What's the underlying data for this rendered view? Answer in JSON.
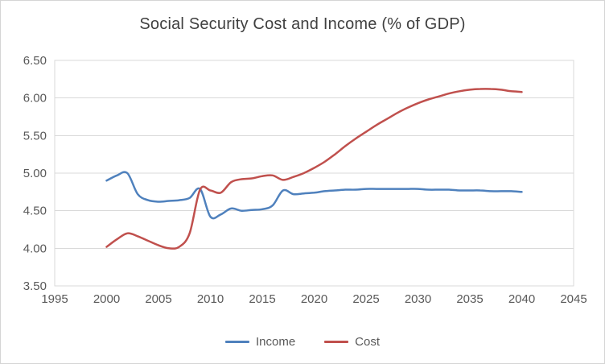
{
  "chart_data": {
    "type": "line",
    "title": "Social Security Cost and Income (% of GDP)",
    "xlabel": "",
    "ylabel": "",
    "xlim": [
      1995,
      2045
    ],
    "ylim": [
      3.5,
      6.5
    ],
    "x_ticks": [
      1995,
      2000,
      2005,
      2010,
      2015,
      2020,
      2025,
      2030,
      2035,
      2040,
      2045
    ],
    "y_ticks": [
      3.5,
      4.0,
      4.5,
      5.0,
      5.5,
      6.0,
      6.5
    ],
    "grid": "horizontal",
    "legend_position": "bottom",
    "x": [
      2000,
      2001,
      2002,
      2003,
      2004,
      2005,
      2006,
      2007,
      2008,
      2009,
      2010,
      2011,
      2012,
      2013,
      2014,
      2015,
      2016,
      2017,
      2018,
      2019,
      2020,
      2021,
      2022,
      2023,
      2024,
      2025,
      2026,
      2027,
      2028,
      2029,
      2030,
      2031,
      2032,
      2033,
      2034,
      2035,
      2036,
      2037,
      2038,
      2039,
      2040
    ],
    "series": [
      {
        "name": "Income",
        "color": "#4F81BD",
        "values": [
          4.9,
          4.97,
          5.0,
          4.72,
          4.64,
          4.62,
          4.63,
          4.64,
          4.67,
          4.79,
          4.42,
          4.45,
          4.53,
          4.5,
          4.51,
          4.52,
          4.57,
          4.77,
          4.72,
          4.73,
          4.74,
          4.76,
          4.77,
          4.78,
          4.78,
          4.79,
          4.79,
          4.79,
          4.79,
          4.79,
          4.79,
          4.78,
          4.78,
          4.78,
          4.77,
          4.77,
          4.77,
          4.76,
          4.76,
          4.76,
          4.75
        ]
      },
      {
        "name": "Cost",
        "color": "#C0504D",
        "values": [
          4.02,
          4.12,
          4.2,
          4.16,
          4.1,
          4.04,
          4.0,
          4.02,
          4.2,
          4.78,
          4.77,
          4.74,
          4.88,
          4.92,
          4.93,
          4.96,
          4.97,
          4.91,
          4.95,
          5.0,
          5.07,
          5.15,
          5.25,
          5.36,
          5.46,
          5.55,
          5.64,
          5.72,
          5.8,
          5.87,
          5.93,
          5.98,
          6.02,
          6.06,
          6.09,
          6.11,
          6.12,
          6.12,
          6.11,
          6.09,
          6.08
        ]
      }
    ],
    "colors": {
      "gridline": "#d9d9d9",
      "axis_text": "#595959",
      "title_text": "#404040",
      "plot_border": "#d9d9d9"
    }
  }
}
